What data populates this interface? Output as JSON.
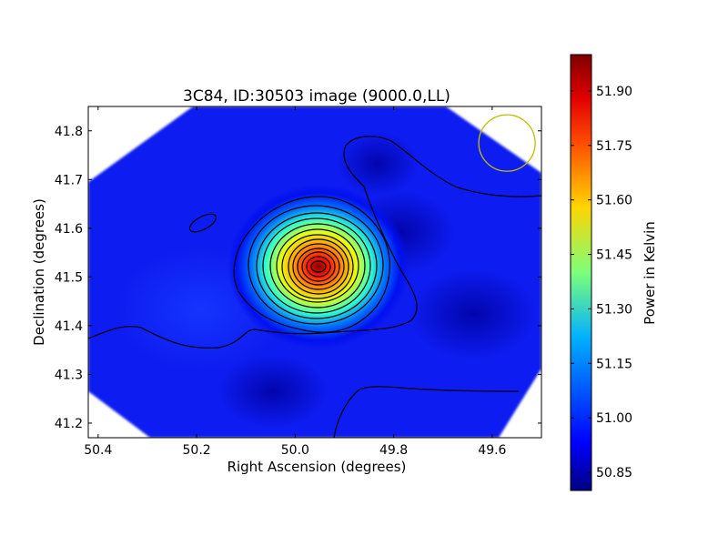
{
  "chart_data": {
    "type": "heatmap",
    "title": "3C84, ID:30503 image (9000.0,LL)",
    "xlabel": "Right Ascension (degrees)",
    "ylabel": "Declination (degrees)",
    "xlim": [
      50.42,
      49.5
    ],
    "ylim": [
      41.17,
      41.85
    ],
    "x_inverted": true,
    "xticks": [
      50.4,
      50.2,
      50.0,
      49.8,
      49.6
    ],
    "xtick_labels": [
      "50.4",
      "50.2",
      "50.0",
      "49.8",
      "49.6"
    ],
    "yticks": [
      41.2,
      41.3,
      41.4,
      41.5,
      41.6,
      41.7,
      41.8
    ],
    "ytick_labels": [
      "41.2",
      "41.3",
      "41.4",
      "41.5",
      "41.6",
      "41.7",
      "41.8"
    ],
    "colormap": "jet",
    "colorbar": {
      "label": "Power in Kelvin",
      "range": [
        50.8,
        52.0
      ],
      "ticks": [
        50.85,
        51.0,
        51.15,
        51.3,
        51.45,
        51.6,
        51.75,
        51.9
      ],
      "tick_labels": [
        "50.85",
        "51.00",
        "51.15",
        "51.30",
        "51.45",
        "51.60",
        "51.75",
        "51.90"
      ]
    },
    "background_level": 50.97,
    "peak": {
      "ra": 49.955,
      "dec": 41.52,
      "value": 51.99
    },
    "beam": {
      "ra": 49.57,
      "dec": 41.775,
      "color": "#bfbf00"
    },
    "grid": false,
    "legend": "none"
  }
}
